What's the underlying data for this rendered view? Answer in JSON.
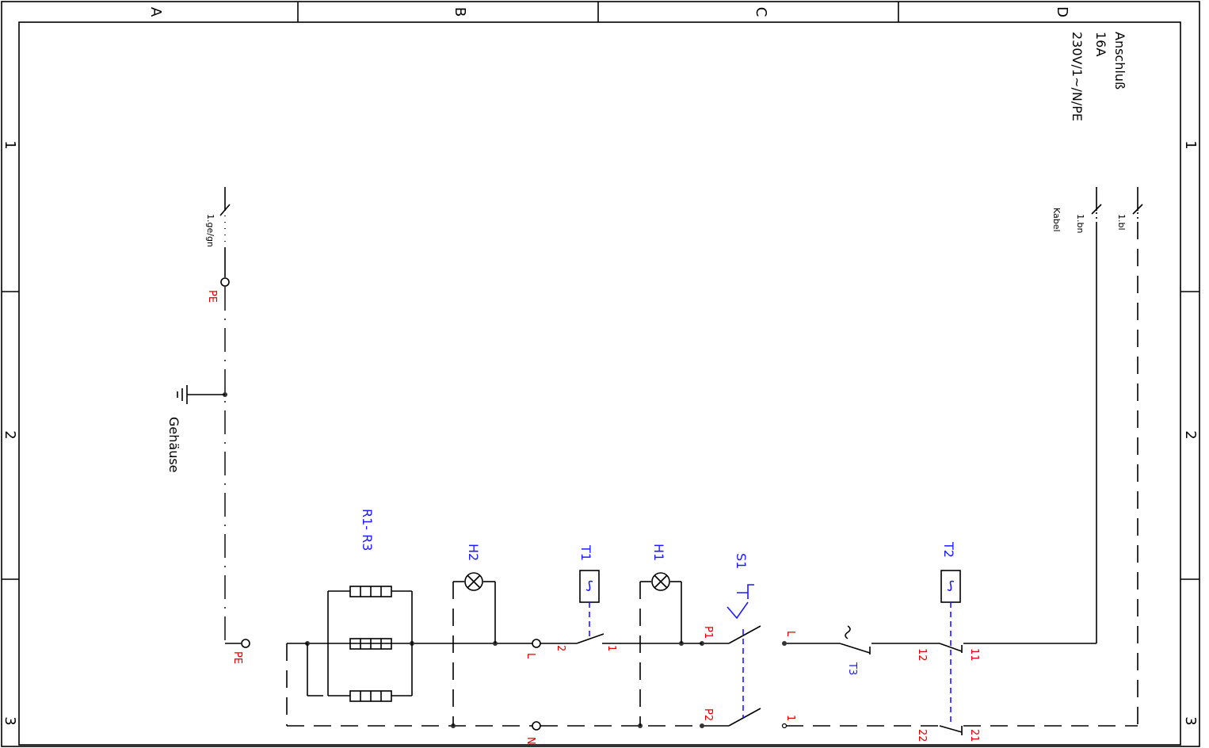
{
  "frame": {
    "columns": [
      "A",
      "B",
      "C",
      "D"
    ],
    "rows": [
      "1",
      "2",
      "3"
    ]
  },
  "supply": {
    "title": "Anschluß",
    "current": "16A",
    "voltage": "230V/1~/N/PE"
  },
  "cable": {
    "label": "Kabel",
    "wire_bl": "1.bl",
    "wire_bn": "1.bn",
    "wire_gegn": "1.ge/gn"
  },
  "ground": {
    "terminal": "PE",
    "housing": "Gehäuse",
    "terminal_bottom": "PE"
  },
  "components": {
    "heaters": "R1- R3",
    "lamp_h2": "H2",
    "lamp_h1": "H1",
    "thermostat_t1": "T1",
    "thermostat_t2": "T2",
    "thermostat_t3": "T3",
    "switch_s1": "S1"
  },
  "terminals": {
    "L_left": "L",
    "N": "N",
    "t1_2": "2",
    "t1_1": "1",
    "P1": "P1",
    "P2": "P2",
    "L_mid": "L",
    "one_mid": "1",
    "t2_12": "12",
    "t2_11": "11",
    "t2_22": "22",
    "t2_21": "21"
  },
  "colors": {
    "wire": "#000000",
    "terminal_label": "#e00000",
    "component_label": "#1a1aff"
  }
}
